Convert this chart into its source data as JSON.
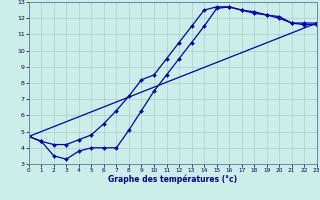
{
  "bg_color": "#cceee8",
  "grid_color": "#aacccc",
  "line_color": "#0000bb",
  "xlabel": "Graphe des températures (°c)",
  "xlim": [
    0,
    23
  ],
  "ylim": [
    3,
    13
  ],
  "line1_x": [
    0,
    1,
    2,
    3,
    4,
    5,
    6,
    7,
    8,
    9,
    10,
    11,
    12,
    13,
    14,
    15,
    16,
    17,
    18,
    19,
    20,
    21,
    22,
    23
  ],
  "line1_y": [
    4.7,
    4.4,
    4.2,
    4.2,
    4.5,
    4.8,
    5.5,
    6.3,
    7.2,
    8.2,
    8.5,
    9.5,
    10.5,
    11.5,
    12.5,
    12.7,
    12.7,
    12.5,
    12.3,
    12.2,
    12.1,
    11.7,
    11.7,
    11.7
  ],
  "line2_x": [
    0,
    1,
    2,
    3,
    4,
    5,
    6,
    7,
    8,
    9,
    10,
    11,
    12,
    13,
    14,
    15,
    16,
    17,
    18,
    19,
    20,
    21,
    22,
    23
  ],
  "line2_y": [
    4.7,
    4.4,
    3.5,
    3.3,
    3.8,
    4.0,
    4.0,
    4.0,
    5.1,
    6.3,
    7.5,
    8.5,
    9.5,
    10.5,
    11.5,
    12.6,
    12.7,
    12.5,
    12.4,
    12.2,
    12.0,
    11.7,
    11.6,
    11.6
  ],
  "line3_x": [
    0,
    23
  ],
  "line3_y": [
    4.7,
    11.7
  ]
}
